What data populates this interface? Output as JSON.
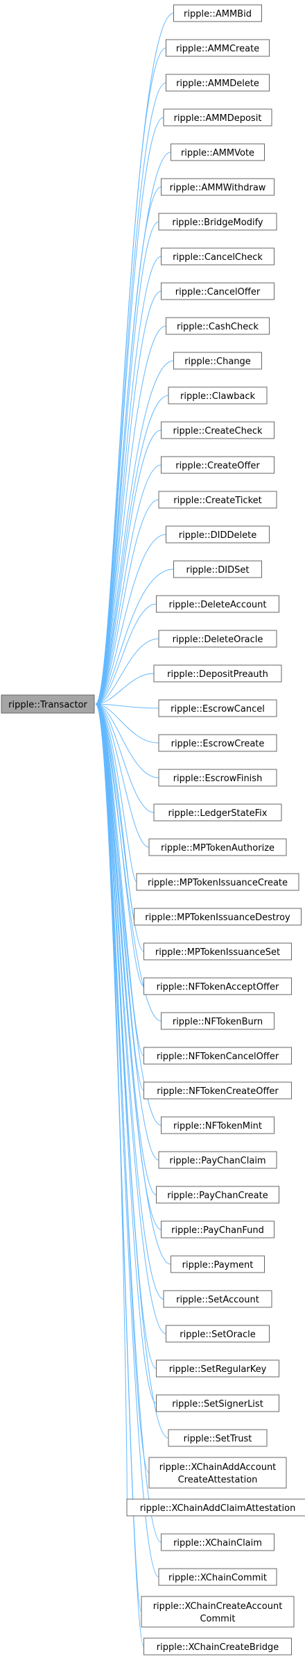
{
  "base_class": {
    "label": "ripple::Transactor",
    "fill": "#a5a5a5",
    "stroke": "#666666"
  },
  "colors": {
    "edge": "#63b8ff",
    "node_stroke": "#666666",
    "node_fill": "#ffffff"
  },
  "derived_classes": [
    {
      "lines": [
        "ripple::AMMBid"
      ]
    },
    {
      "lines": [
        "ripple::AMMCreate"
      ]
    },
    {
      "lines": [
        "ripple::AMMDelete"
      ]
    },
    {
      "lines": [
        "ripple::AMMDeposit"
      ]
    },
    {
      "lines": [
        "ripple::AMMVote"
      ]
    },
    {
      "lines": [
        "ripple::AMMWithdraw"
      ]
    },
    {
      "lines": [
        "ripple::BridgeModify"
      ]
    },
    {
      "lines": [
        "ripple::CancelCheck"
      ]
    },
    {
      "lines": [
        "ripple::CancelOffer"
      ]
    },
    {
      "lines": [
        "ripple::CashCheck"
      ]
    },
    {
      "lines": [
        "ripple::Change"
      ]
    },
    {
      "lines": [
        "ripple::Clawback"
      ]
    },
    {
      "lines": [
        "ripple::CreateCheck"
      ]
    },
    {
      "lines": [
        "ripple::CreateOffer"
      ]
    },
    {
      "lines": [
        "ripple::CreateTicket"
      ]
    },
    {
      "lines": [
        "ripple::DIDDelete"
      ]
    },
    {
      "lines": [
        "ripple::DIDSet"
      ]
    },
    {
      "lines": [
        "ripple::DeleteAccount"
      ]
    },
    {
      "lines": [
        "ripple::DeleteOracle"
      ]
    },
    {
      "lines": [
        "ripple::DepositPreauth"
      ]
    },
    {
      "lines": [
        "ripple::EscrowCancel"
      ]
    },
    {
      "lines": [
        "ripple::EscrowCreate"
      ]
    },
    {
      "lines": [
        "ripple::EscrowFinish"
      ]
    },
    {
      "lines": [
        "ripple::LedgerStateFix"
      ]
    },
    {
      "lines": [
        "ripple::MPTokenAuthorize"
      ]
    },
    {
      "lines": [
        "ripple::MPTokenIssuanceCreate"
      ]
    },
    {
      "lines": [
        "ripple::MPTokenIssuanceDestroy"
      ]
    },
    {
      "lines": [
        "ripple::MPTokenIssuanceSet"
      ]
    },
    {
      "lines": [
        "ripple::NFTokenAcceptOffer"
      ]
    },
    {
      "lines": [
        "ripple::NFTokenBurn"
      ]
    },
    {
      "lines": [
        "ripple::NFTokenCancelOffer"
      ]
    },
    {
      "lines": [
        "ripple::NFTokenCreateOffer"
      ]
    },
    {
      "lines": [
        "ripple::NFTokenMint"
      ]
    },
    {
      "lines": [
        "ripple::PayChanClaim"
      ]
    },
    {
      "lines": [
        "ripple::PayChanCreate"
      ]
    },
    {
      "lines": [
        "ripple::PayChanFund"
      ]
    },
    {
      "lines": [
        "ripple::Payment"
      ]
    },
    {
      "lines": [
        "ripple::SetAccount"
      ]
    },
    {
      "lines": [
        "ripple::SetOracle"
      ]
    },
    {
      "lines": [
        "ripple::SetRegularKey"
      ]
    },
    {
      "lines": [
        "ripple::SetSignerList"
      ]
    },
    {
      "lines": [
        "ripple::SetTrust"
      ]
    },
    {
      "lines": [
        "ripple::XChainAddAccount",
        "CreateAttestation"
      ]
    },
    {
      "lines": [
        "ripple::XChainAddClaimAttestation"
      ]
    },
    {
      "lines": [
        "ripple::XChainClaim"
      ]
    },
    {
      "lines": [
        "ripple::XChainCommit"
      ]
    },
    {
      "lines": [
        "ripple::XChainCreateAccount",
        "Commit"
      ]
    },
    {
      "lines": [
        "ripple::XChainCreateBridge"
      ]
    }
  ]
}
